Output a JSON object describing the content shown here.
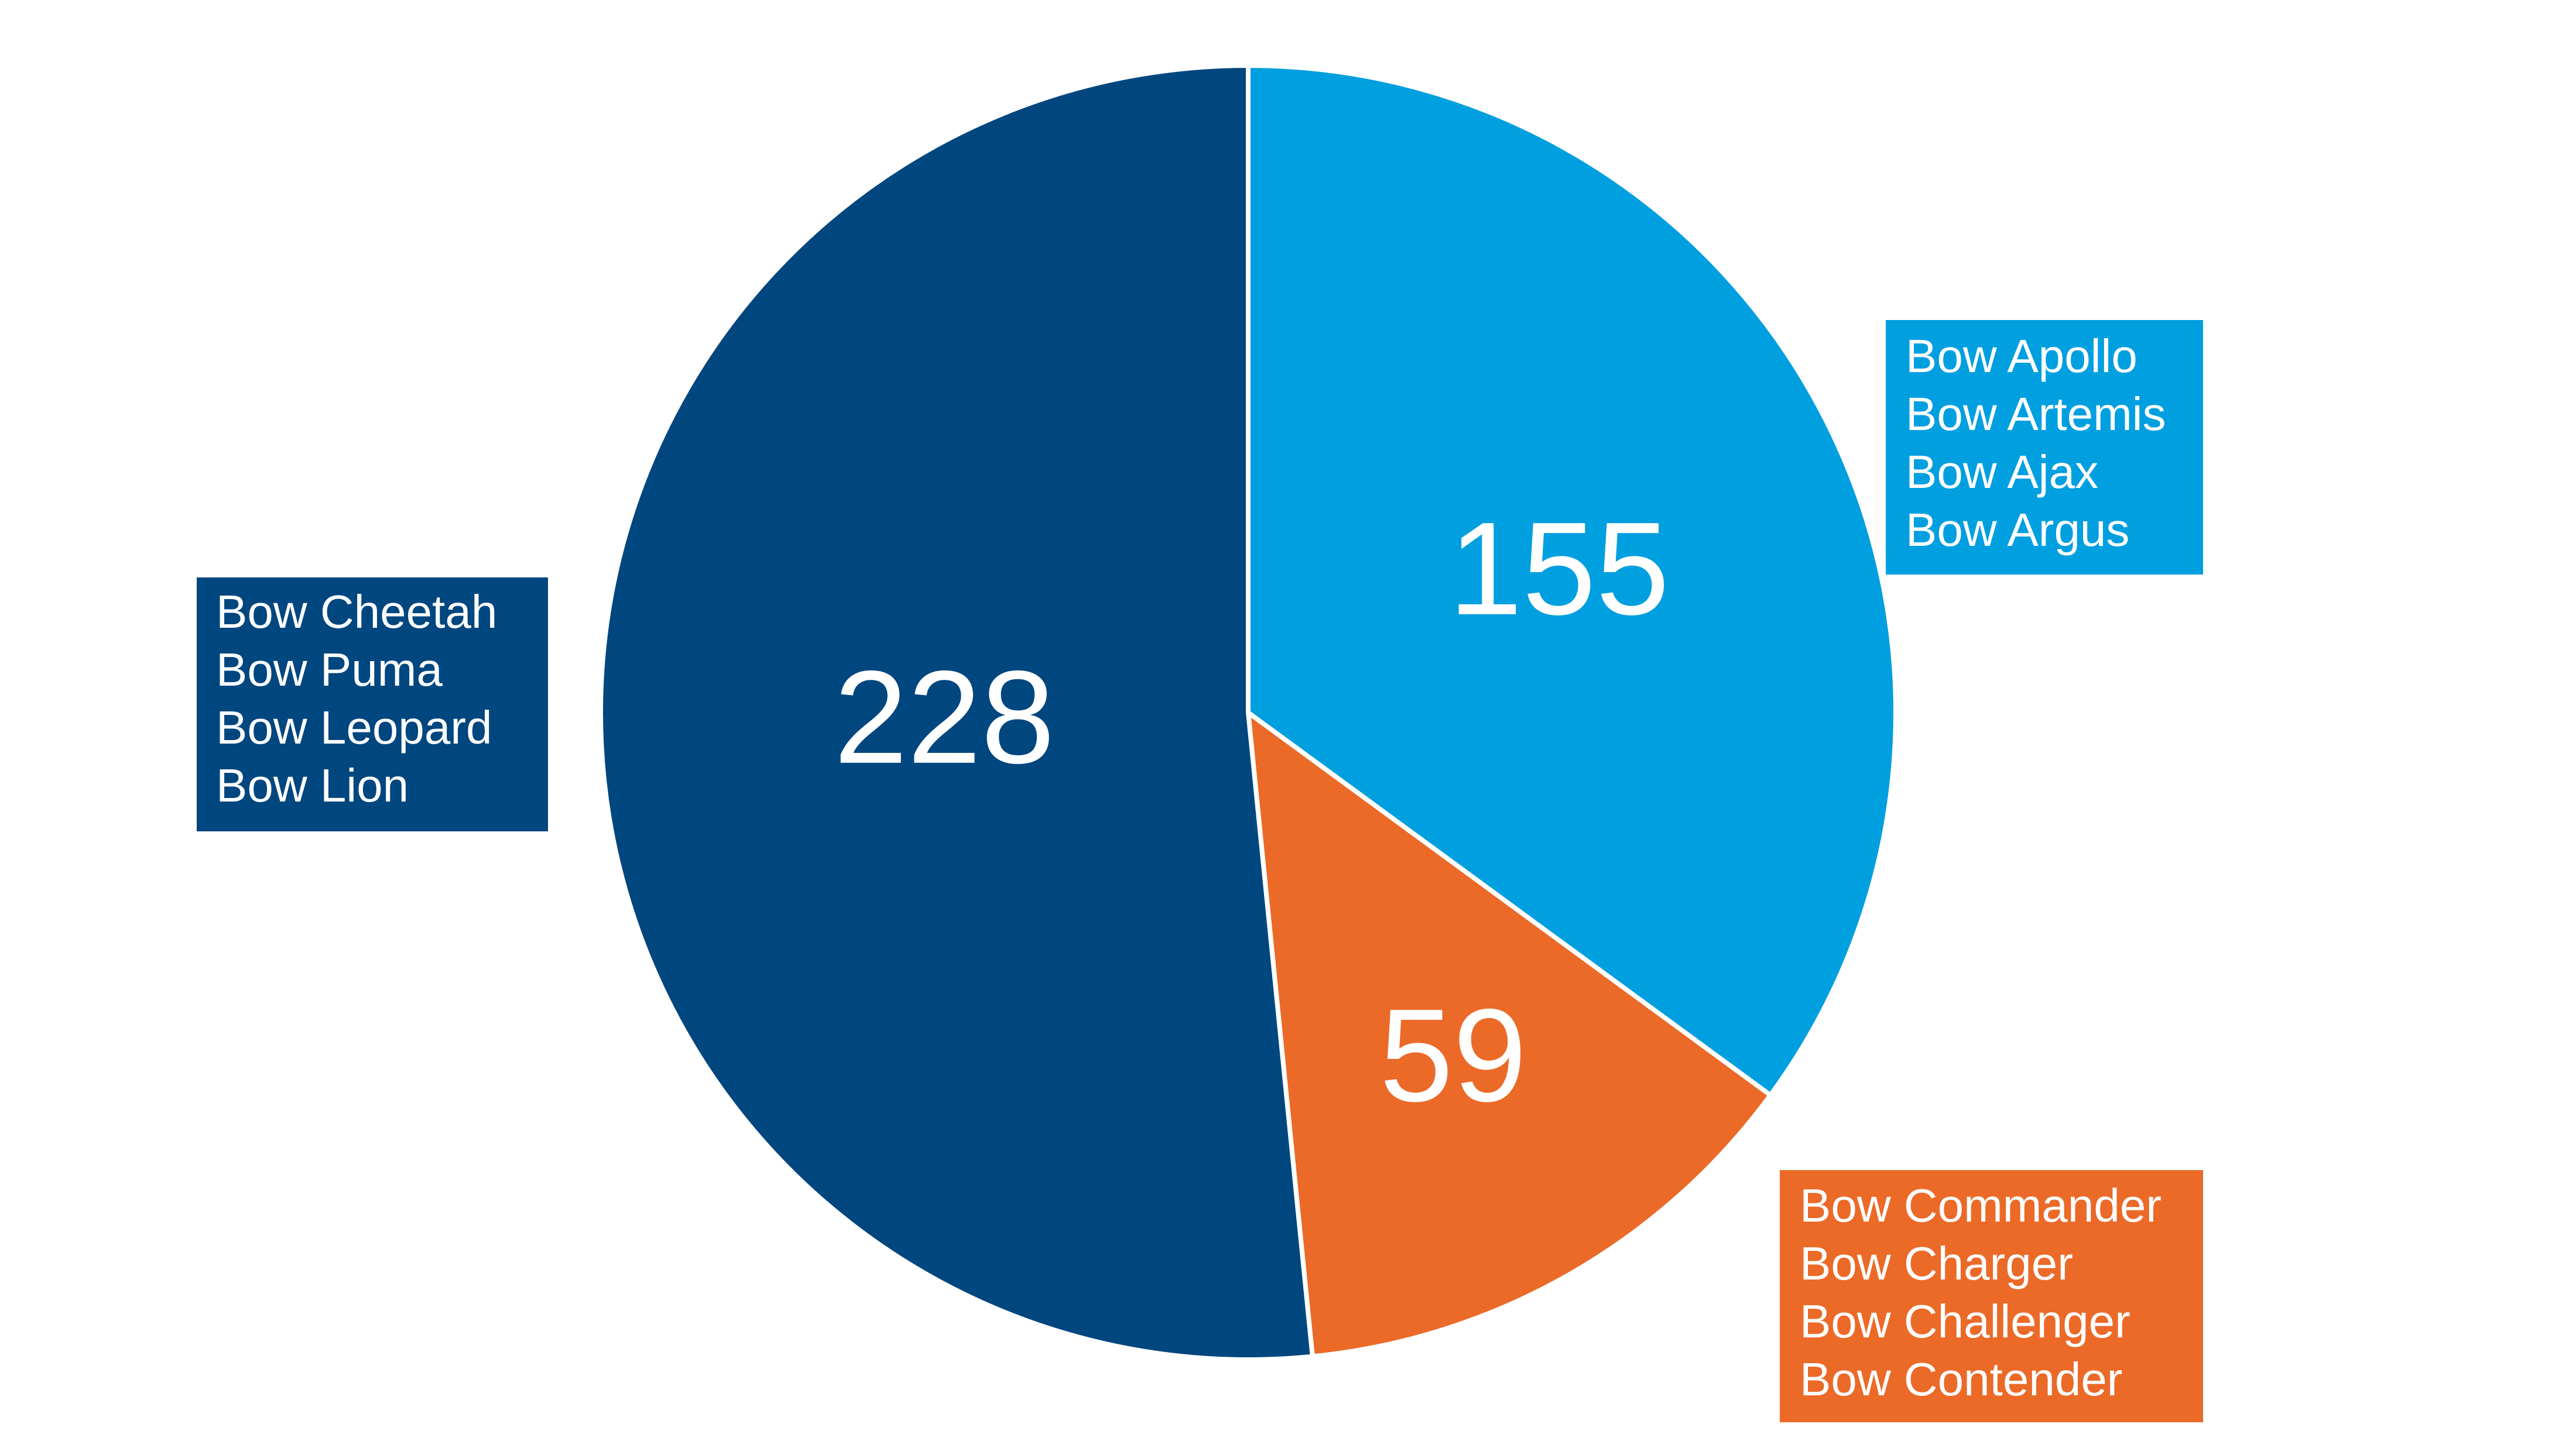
{
  "chart_data": {
    "type": "pie",
    "categories": [
      [
        "Bow Apollo",
        "Bow Artemis",
        "Bow Ajax",
        "Bow Argus"
      ],
      [
        "Bow Commander",
        "Bow Charger",
        "Bow Challenger",
        "Bow Contender"
      ],
      [
        "Bow Cheetah",
        "Bow Puma",
        "Bow Leopard",
        "Bow Lion"
      ]
    ],
    "values": [
      155,
      59,
      228
    ],
    "colors": [
      "#009fe0",
      "#eb6a28",
      "#00467f"
    ]
  }
}
